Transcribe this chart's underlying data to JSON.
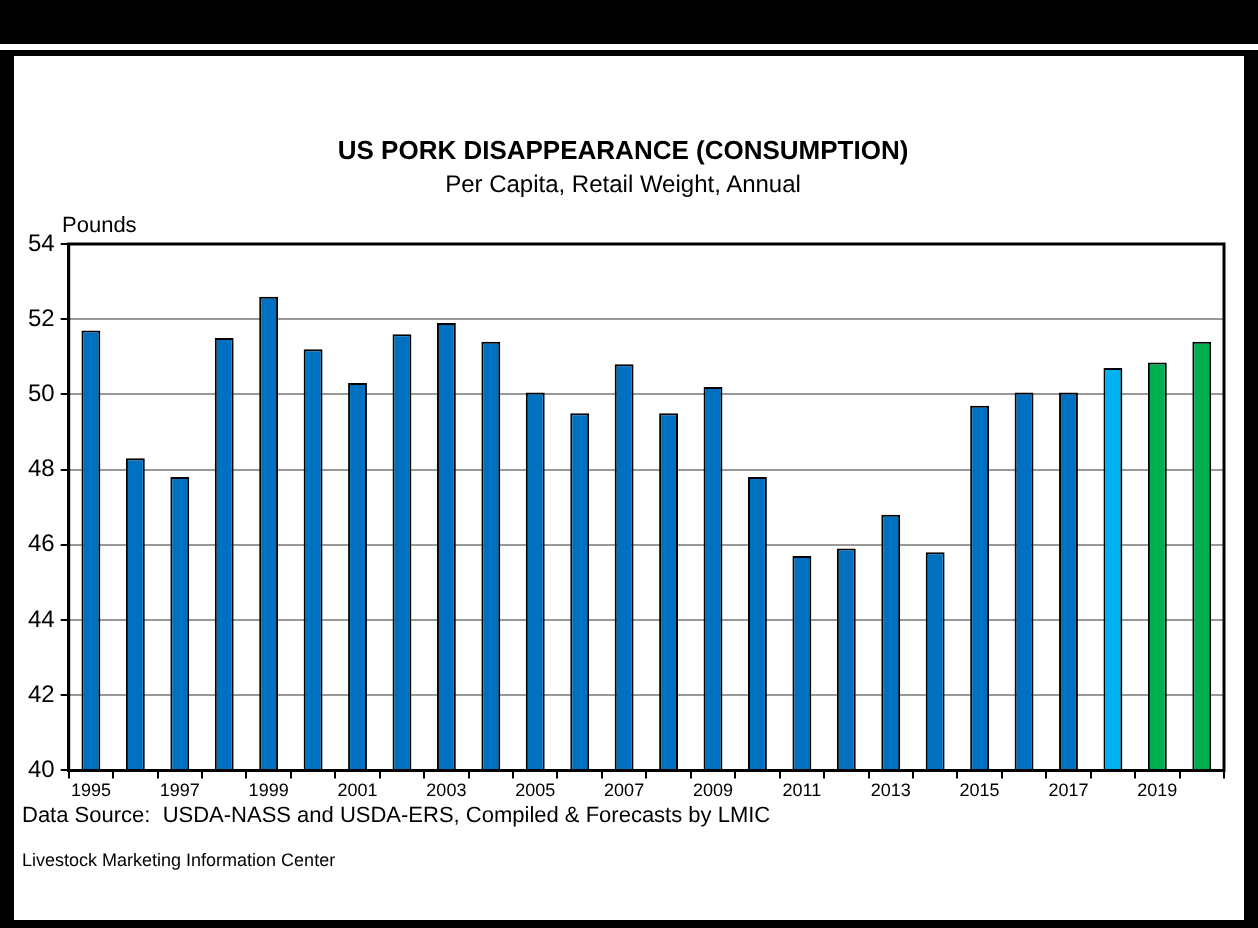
{
  "chart_data": {
    "type": "bar",
    "title": "US PORK DISAPPEARANCE (CONSUMPTION)",
    "subtitle": "Per Capita, Retail Weight, Annual",
    "ylabel": "Pounds",
    "categories": [
      "1995",
      null,
      "1997",
      null,
      "1999",
      null,
      "2001",
      null,
      "2003",
      null,
      "2005",
      null,
      "2007",
      null,
      "2009",
      null,
      "2011",
      null,
      "2013",
      null,
      "2015",
      null,
      "2017",
      null,
      "2019",
      null
    ],
    "values": [
      51.7,
      48.3,
      47.8,
      51.5,
      52.6,
      51.2,
      50.3,
      51.6,
      51.9,
      51.4,
      50.05,
      49.5,
      50.8,
      49.5,
      50.2,
      47.8,
      45.7,
      45.9,
      46.8,
      45.8,
      49.7,
      50.05,
      50.05,
      50.7,
      50.85,
      51.4
    ],
    "colors": [
      "#0070c0",
      "#0070c0",
      "#0070c0",
      "#0070c0",
      "#0070c0",
      "#0070c0",
      "#0070c0",
      "#0070c0",
      "#0070c0",
      "#0070c0",
      "#0070c0",
      "#0070c0",
      "#0070c0",
      "#0070c0",
      "#0070c0",
      "#0070c0",
      "#0070c0",
      "#0070c0",
      "#0070c0",
      "#0070c0",
      "#0070c0",
      "#0070c0",
      "#0070c0",
      "#00b0f0",
      "#00b050",
      "#00b050"
    ],
    "ylim": [
      40,
      54
    ],
    "yticks": [
      40,
      42,
      44,
      46,
      48,
      50,
      52,
      54
    ],
    "grid": "y",
    "legend": false,
    "annotations": [
      "Data Source:  USDA-NASS and USDA-ERS, Compiled & Forecasts by LMIC",
      "Livestock Marketing Information Center"
    ]
  }
}
